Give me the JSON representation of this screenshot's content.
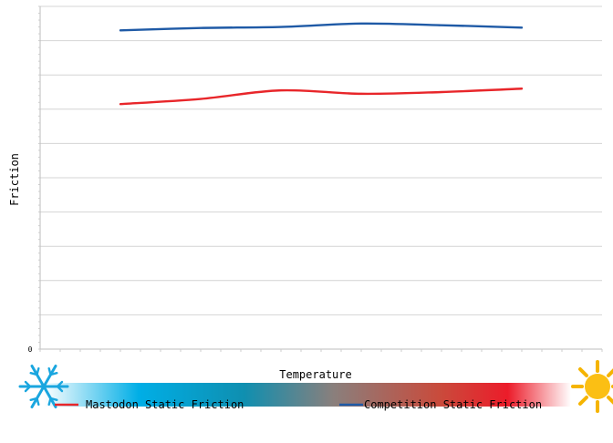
{
  "chart_data": {
    "type": "line",
    "title": "",
    "xlabel": "Temperature",
    "ylabel": "Friction",
    "y_tick_labels": [
      "0"
    ],
    "x_points": [
      1,
      2,
      3,
      4,
      5,
      6
    ],
    "series": [
      {
        "name": "Mastodon Static Friction",
        "color": "#e8262a",
        "values": [
          0.715,
          0.73,
          0.755,
          0.745,
          0.75,
          0.76
        ]
      },
      {
        "name": "Competition Static Friction",
        "color": "#1f5aa6",
        "values": [
          0.93,
          0.937,
          0.94,
          0.95,
          0.945,
          0.938
        ]
      }
    ],
    "ylim": [
      0,
      1
    ],
    "xlim": [
      0,
      7
    ],
    "grid": true,
    "legend_position": "bottom",
    "temperature_scale": {
      "cold_icon": "snowflake-icon",
      "hot_icon": "sun-icon",
      "gradient_colors": [
        "#ffffff",
        "#00aee6",
        "#0f8fb0",
        "#8a7f7c",
        "#c94b3c",
        "#ec1c2a",
        "#ffffff"
      ]
    }
  }
}
